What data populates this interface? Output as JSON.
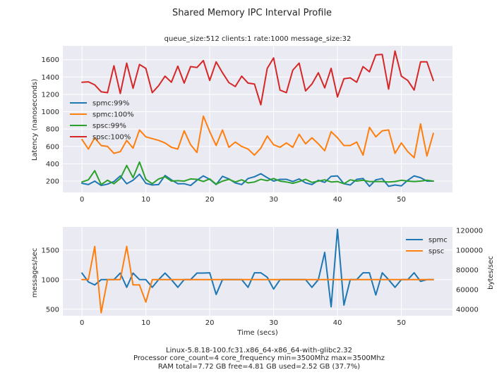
{
  "figure": {
    "title": "Shared Memory IPC Interval Profile",
    "footer_lines": [
      "Linux-5.8.18-100.fc31.x86_64-x86_64-with-glibc2.32",
      "Processor core_count=4 core_frequency min=3500Mhz max=3500Mhz",
      "RAM total=7.72 GB free=4.81 GB used=2.52 GB (37.7%)"
    ]
  },
  "colors": {
    "spmc_99": "#1f77b4",
    "spmc_100": "#ff7f0e",
    "spsc_99": "#2ca02c",
    "spsc_100": "#d62728",
    "spmc": "#1f77b4",
    "spsc": "#ff7f0e"
  },
  "chart_data": [
    {
      "type": "line",
      "title": "queue_size:512 clients:1 rate:1000 message_size:32",
      "xlabel": "",
      "ylabel": "Latency (nanoseconds)",
      "xlim": [
        -3,
        58
      ],
      "ylim": [
        70,
        1760
      ],
      "xticks": [
        0,
        10,
        20,
        30,
        40,
        50
      ],
      "yticks": [
        200,
        400,
        600,
        800,
        1000,
        1200,
        1400,
        1600
      ],
      "grid": true,
      "legend_position": "center-left",
      "x": [
        0,
        1,
        2,
        3,
        4,
        5,
        6,
        7,
        8,
        9,
        10,
        11,
        12,
        13,
        14,
        15,
        16,
        17,
        18,
        19,
        20,
        21,
        22,
        23,
        24,
        25,
        26,
        27,
        28,
        29,
        30,
        31,
        32,
        33,
        34,
        35,
        36,
        37,
        38,
        39,
        40,
        41,
        42,
        43,
        44,
        45,
        46,
        47,
        48,
        49,
        50,
        51,
        52,
        53,
        54,
        55
      ],
      "series": [
        {
          "name": "spmc:99%",
          "color_key": "spmc_99",
          "values": [
            175,
            160,
            200,
            150,
            165,
            195,
            260,
            170,
            210,
            280,
            175,
            155,
            160,
            265,
            215,
            170,
            170,
            150,
            210,
            260,
            220,
            160,
            255,
            225,
            180,
            160,
            230,
            250,
            285,
            240,
            200,
            220,
            220,
            195,
            225,
            180,
            160,
            210,
            185,
            255,
            260,
            170,
            155,
            220,
            230,
            140,
            215,
            230,
            140,
            155,
            145,
            210,
            260,
            240,
            200,
            200
          ]
        },
        {
          "name": "spmc:100%",
          "color_key": "spmc_100",
          "values": [
            680,
            570,
            700,
            610,
            600,
            520,
            540,
            670,
            580,
            790,
            710,
            690,
            670,
            640,
            590,
            570,
            780,
            620,
            530,
            950,
            770,
            610,
            790,
            590,
            650,
            600,
            570,
            500,
            580,
            720,
            620,
            590,
            640,
            590,
            740,
            630,
            700,
            630,
            550,
            770,
            700,
            610,
            610,
            650,
            500,
            820,
            710,
            780,
            790,
            520,
            640,
            540,
            470,
            860,
            490,
            750
          ]
        },
        {
          "name": "spsc:99%",
          "color_key": "spsc_99",
          "values": [
            190,
            215,
            320,
            160,
            210,
            170,
            230,
            380,
            240,
            420,
            220,
            170,
            225,
            250,
            200,
            205,
            200,
            225,
            220,
            195,
            225,
            165,
            200,
            220,
            190,
            215,
            180,
            190,
            220,
            205,
            230,
            200,
            190,
            175,
            195,
            220,
            185,
            200,
            215,
            190,
            195,
            170,
            215,
            200,
            210,
            195,
            195,
            195,
            190,
            195,
            210,
            200,
            195,
            200,
            210,
            200
          ]
        },
        {
          "name": "spsc:100%",
          "color_key": "spsc_100",
          "values": [
            1340,
            1345,
            1310,
            1230,
            1220,
            1530,
            1210,
            1560,
            1270,
            1545,
            1500,
            1220,
            1300,
            1410,
            1340,
            1525,
            1330,
            1520,
            1510,
            1590,
            1360,
            1575,
            1450,
            1335,
            1290,
            1410,
            1330,
            1320,
            1080,
            1500,
            1620,
            1250,
            1220,
            1480,
            1560,
            1240,
            1320,
            1450,
            1275,
            1500,
            1170,
            1380,
            1390,
            1340,
            1520,
            1460,
            1655,
            1660,
            1260,
            1700,
            1410,
            1360,
            1250,
            1575,
            1575,
            1360
          ]
        }
      ]
    },
    {
      "type": "line",
      "title": "",
      "xlabel": "Time (secs)",
      "ylabel": "messages/sec",
      "y2label": "bytes/sec",
      "xlim": [
        -3,
        58
      ],
      "ylim": [
        390,
        1890
      ],
      "y2lim": [
        33400,
        123400
      ],
      "xticks": [
        0,
        10,
        20,
        30,
        40,
        50
      ],
      "yticks": [
        500,
        1000,
        1500
      ],
      "y2ticks": [
        40000,
        60000,
        80000,
        100000,
        120000
      ],
      "grid": true,
      "legend_position": "upper-right",
      "x": [
        0,
        1,
        2,
        3,
        4,
        5,
        6,
        7,
        8,
        9,
        10,
        11,
        12,
        13,
        14,
        15,
        16,
        17,
        18,
        19,
        20,
        21,
        22,
        23,
        24,
        25,
        26,
        27,
        28,
        29,
        30,
        31,
        32,
        33,
        34,
        35,
        36,
        37,
        38,
        39,
        40,
        41,
        42,
        43,
        44,
        45,
        46,
        47,
        48,
        49,
        50,
        51,
        52,
        53,
        54,
        55
      ],
      "series": [
        {
          "name": "spmc",
          "color_key": "spmc",
          "values": [
            1110,
            960,
            910,
            1000,
            1000,
            1000,
            1110,
            870,
            1110,
            1000,
            1000,
            870,
            1000,
            1110,
            1000,
            870,
            1000,
            1000,
            1110,
            1110,
            1115,
            750,
            1000,
            1000,
            1000,
            1000,
            870,
            1115,
            1115,
            1040,
            840,
            1000,
            1000,
            1000,
            1000,
            1000,
            870,
            1000,
            1460,
            540,
            1850,
            570,
            1000,
            1000,
            1115,
            1115,
            740,
            1115,
            1000,
            870,
            1000,
            1000,
            1115,
            970,
            1000,
            1000
          ]
        },
        {
          "name": "spsc",
          "color_key": "spsc",
          "values": [
            1000,
            1000,
            1560,
            440,
            1000,
            1000,
            1000,
            1560,
            910,
            910,
            620,
            1000,
            1000,
            1000,
            1000,
            1000,
            1000,
            1000,
            1000,
            1000,
            1000,
            1000,
            1000,
            1000,
            1000,
            1000,
            1000,
            1000,
            1000,
            1000,
            1000,
            1000,
            1000,
            1000,
            1000,
            1000,
            1000,
            1000,
            1000,
            1000,
            1000,
            1000,
            1000,
            1000,
            1000,
            1000,
            1000,
            1000,
            1000,
            1000,
            1000,
            1000,
            1000,
            1000,
            1000,
            1000
          ]
        }
      ]
    }
  ]
}
